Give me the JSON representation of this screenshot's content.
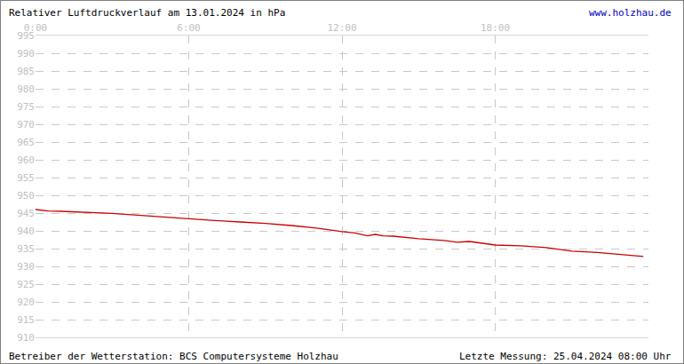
{
  "chart_data": {
    "type": "line",
    "title": "Relativer Luftdruckverlauf am 13.01.2024 in hPa",
    "annotations": [
      "www.holzhau.de",
      "Betreiber der Wetterstation: BCS Computersysteme Holzhau",
      "Letzte Messung: 25.04.2024 08:00 Uhr"
    ],
    "x": [
      0,
      0.5,
      1,
      2,
      3,
      4,
      5,
      6,
      7,
      8,
      9,
      10,
      11,
      12,
      12.5,
      13,
      13.3,
      13.6,
      14,
      15,
      16,
      16.5,
      17,
      18,
      19,
      20,
      21,
      22,
      23,
      23.8
    ],
    "values": [
      946,
      945.6,
      945.5,
      945.2,
      944.9,
      944.4,
      943.9,
      943.3,
      942.9,
      942.5,
      942.1,
      941.5,
      940.8,
      939.8,
      939.4,
      938.6,
      939,
      938.6,
      938.5,
      937.8,
      937.3,
      936.8,
      937,
      936,
      935.8,
      935.3,
      934.3,
      933.9,
      933.3,
      932.8
    ],
    "color": "#cc0000",
    "xlim": [
      0,
      24
    ],
    "xticks": [
      {
        "value": 0,
        "label": "0:00"
      },
      {
        "value": 6,
        "label": "6:00"
      },
      {
        "value": 12,
        "label": "12:00"
      },
      {
        "value": 18,
        "label": "18:00"
      }
    ],
    "ylim": [
      910,
      995
    ],
    "yticks": [
      910,
      915,
      920,
      925,
      930,
      935,
      940,
      945,
      950,
      955,
      960,
      965,
      970,
      975,
      980,
      985,
      990,
      995
    ],
    "grid": true
  }
}
